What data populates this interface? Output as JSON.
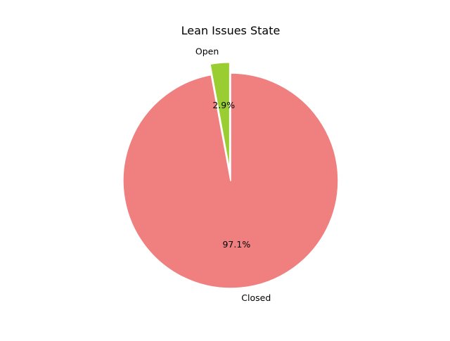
{
  "chart_data": {
    "type": "pie",
    "title": "Lean Issues State",
    "slices": [
      {
        "label": "Open",
        "value": 2.9,
        "pct_label": "2.9%",
        "color": "#9acd32",
        "exploded": true
      },
      {
        "label": "Closed",
        "value": 97.1,
        "pct_label": "97.1%",
        "color": "#f08080",
        "exploded": false
      }
    ],
    "start_angle_deg": 90,
    "direction": "counterclockwise",
    "wedge_edge_color": "#ffffff",
    "legend": "none"
  }
}
